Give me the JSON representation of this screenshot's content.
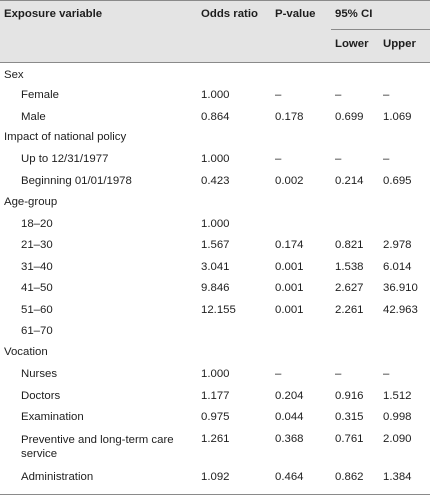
{
  "header": {
    "exposure_variable": "Exposure variable",
    "odds_ratio": "Odds ratio",
    "p_value": "P-value",
    "ci": "95% CI",
    "lower": "Lower",
    "upper": "Upper"
  },
  "rows": [
    {
      "label": "Sex",
      "type": "group"
    },
    {
      "label": "Female",
      "or": "1.000",
      "p": "–",
      "lower": "–",
      "upper": "–"
    },
    {
      "label": "Male",
      "or": "0.864",
      "p": "0.178",
      "lower": "0.699",
      "upper": "1.069"
    },
    {
      "label": "Impact of national policy",
      "type": "group"
    },
    {
      "label": "Up to 12/31/1977",
      "or": "1.000",
      "p": "–",
      "lower": "–",
      "upper": "–"
    },
    {
      "label": "Beginning 01/01/1978",
      "or": "0.423",
      "p": "0.002",
      "lower": "0.214",
      "upper": "0.695"
    },
    {
      "label": "Age-group",
      "type": "group"
    },
    {
      "label": "18–20",
      "or": "1.000"
    },
    {
      "label": "21–30",
      "or": "1.567",
      "p": "0.174",
      "lower": "0.821",
      "upper": "2.978"
    },
    {
      "label": "31–40",
      "or": "3.041",
      "p": "0.001",
      "lower": "1.538",
      "upper": "6.014"
    },
    {
      "label": "41–50",
      "or": "9.846",
      "p": "0.001",
      "lower": "2.627",
      "upper": "36.910"
    },
    {
      "label": "51–60",
      "or": "12.155",
      "p": "0.001",
      "lower": "2.261",
      "upper": "42.963"
    },
    {
      "label": "61–70"
    },
    {
      "label": "Vocation",
      "type": "group"
    },
    {
      "label": "Nurses",
      "or": "1.000",
      "p": "–",
      "lower": "–",
      "upper": "–"
    },
    {
      "label": "Doctors",
      "or": "1.177",
      "p": "0.204",
      "lower": "0.916",
      "upper": "1.512"
    },
    {
      "label": "Examination",
      "or": "0.975",
      "p": "0.044",
      "lower": "0.315",
      "upper": "0.998"
    },
    {
      "label": "Preventive and long-term care service",
      "or": "1.261",
      "p": "0.368",
      "lower": "0.761",
      "upper": "2.090"
    },
    {
      "label": "Administration",
      "or": "1.092",
      "p": "0.464",
      "lower": "0.862",
      "upper": "1.384"
    }
  ]
}
